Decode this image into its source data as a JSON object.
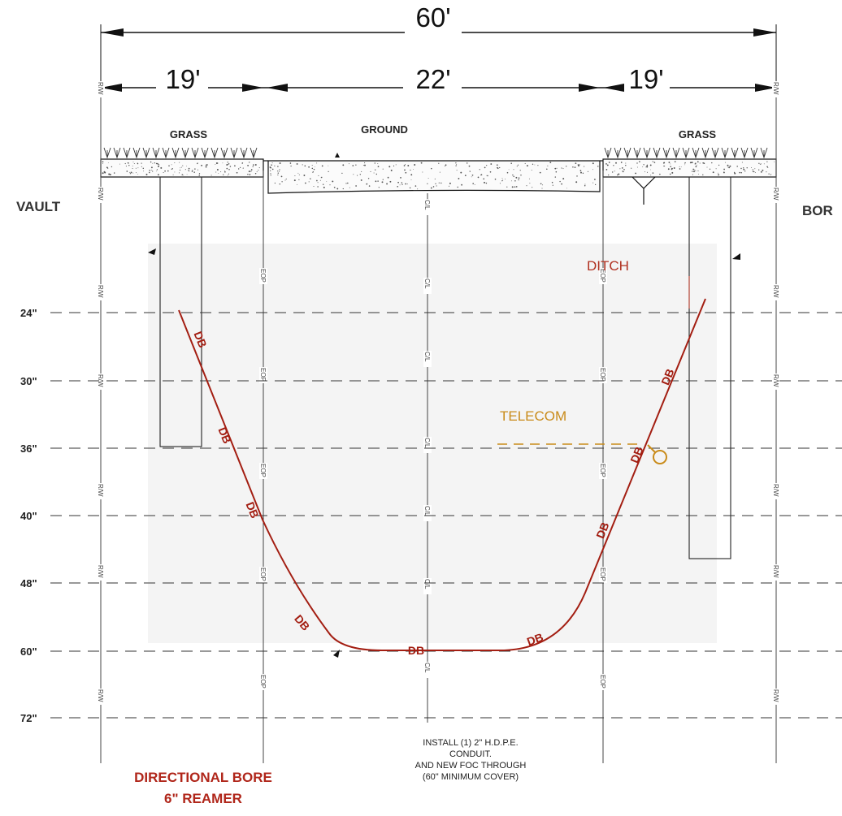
{
  "dimensions": {
    "total": "60'",
    "left": "19'",
    "center": "22'",
    "right": "19'"
  },
  "surface": {
    "left": "GRASS",
    "center": "GROUND",
    "right": "GRASS"
  },
  "sides": {
    "left": "VAULT",
    "right": "BOR"
  },
  "depths": [
    "24\"",
    "30\"",
    "36\"",
    "40\"",
    "48\"",
    "60\"",
    "72\""
  ],
  "line_tags": {
    "row": "R/W",
    "edge": "EOP",
    "center": "C/L"
  },
  "bore_tag": "DB",
  "labels": {
    "ditch": "DITCH",
    "telecom": "TELECOM"
  },
  "note": [
    "INSTALL (1) 2\" H.D.P.E.",
    "CONDUIT.",
    "AND NEW FOC THROUGH",
    "(60\" MINIMUM COVER)"
  ],
  "title": [
    "DIRECTIONAL BORE",
    "6\" REAMER"
  ],
  "colors": {
    "bore": "#a31e12",
    "telecom": "#c98b1a",
    "shade": "#f5f5f5"
  }
}
